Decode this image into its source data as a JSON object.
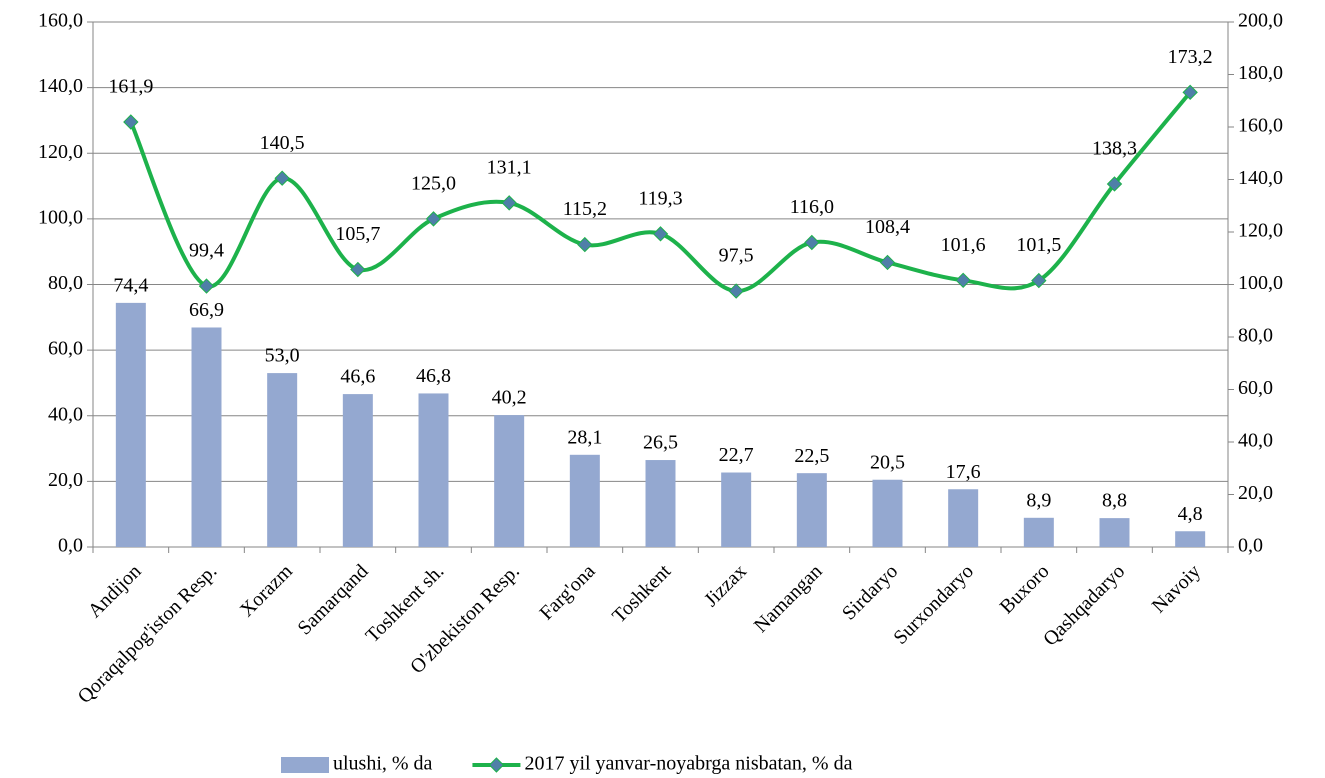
{
  "chart_data": {
    "type": "bar-line",
    "categories": [
      "Andijon",
      "Qoraqalpog'iston Resp.",
      "Xorazm",
      "Samarqand",
      "Toshkent sh.",
      "O'zbekiston Resp.",
      "Farg'ona",
      "Toshkent",
      "Jizzax",
      "Namangan",
      "Sirdaryo",
      "Surxondaryo",
      "Buxoro",
      "Qashqadaryo",
      "Navoiy"
    ],
    "series": [
      {
        "name": "ulushi, % da",
        "type": "bar",
        "color": "#94a8d0",
        "values": [
          74.4,
          66.9,
          53.0,
          46.6,
          46.8,
          40.2,
          28.1,
          26.5,
          22.7,
          22.5,
          20.5,
          17.6,
          8.9,
          8.8,
          4.8
        ],
        "value_labels": [
          "74,4",
          "66,9",
          "53,0",
          "46,6",
          "46,8",
          "40,2",
          "28,1",
          "26,5",
          "22,7",
          "22,5",
          "20,5",
          "17,6",
          "8,9",
          "8,8",
          "4,8"
        ]
      },
      {
        "name": "2017 yil yanvar-noyabrga nisbatan, % da",
        "type": "line",
        "axis": "y2",
        "color": "#1db24b",
        "marker_color": "#4f7fa8",
        "values": [
          161.9,
          99.4,
          140.5,
          105.7,
          125.0,
          131.1,
          115.2,
          119.3,
          97.5,
          116.0,
          108.4,
          101.6,
          101.5,
          138.3,
          173.2
        ],
        "value_labels": [
          "161,9",
          "99,4",
          "140,5",
          "105,7",
          "125,0",
          "131,1",
          "115,2",
          "119,3",
          "97,5",
          "116,0",
          "108,4",
          "101,6",
          "101,5",
          "138,3",
          "173,2"
        ]
      }
    ],
    "ylim": [
      0,
      160
    ],
    "yticks": [
      {
        "value": 0,
        "label": "0,0"
      },
      {
        "value": 20,
        "label": "20,0"
      },
      {
        "value": 40,
        "label": "40,0"
      },
      {
        "value": 60,
        "label": "60,0"
      },
      {
        "value": 80,
        "label": "80,0"
      },
      {
        "value": 100,
        "label": "100,0"
      },
      {
        "value": 120,
        "label": "120,0"
      },
      {
        "value": 140,
        "label": "140,0"
      },
      {
        "value": 160,
        "label": "160,0"
      }
    ],
    "y2lim": [
      0,
      200
    ],
    "y2ticks": [
      {
        "value": 0,
        "label": "0,0"
      },
      {
        "value": 20,
        "label": "20,0"
      },
      {
        "value": 40,
        "label": "40,0"
      },
      {
        "value": 60,
        "label": "60,0"
      },
      {
        "value": 80,
        "label": "80,0"
      },
      {
        "value": 100,
        "label": "100,0"
      },
      {
        "value": 120,
        "label": "120,0"
      },
      {
        "value": 140,
        "label": "140,0"
      },
      {
        "value": 160,
        "label": "160,0"
      },
      {
        "value": 180,
        "label": "180,0"
      },
      {
        "value": 200,
        "label": "200,0"
      }
    ],
    "grid": true,
    "legend": "bottom"
  }
}
